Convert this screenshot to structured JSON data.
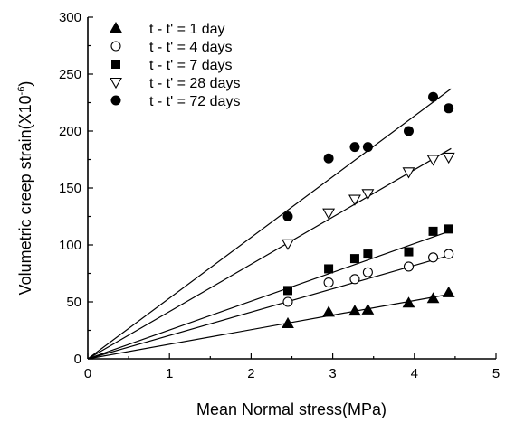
{
  "chart_data": {
    "type": "scatter",
    "title": "",
    "xlabel": "Mean Normal stress(MPa)",
    "ylabel": "Volumetric creep strain(X10",
    "ylabel_exponent": "-6",
    "ylabel_close": ")",
    "xlim": [
      0,
      5
    ],
    "ylim": [
      0,
      300
    ],
    "xticks": [
      0,
      1,
      2,
      3,
      4,
      5
    ],
    "yticks": [
      0,
      50,
      100,
      150,
      200,
      250,
      300
    ],
    "legend_position": "top-left",
    "grid": false,
    "series": [
      {
        "name": "t - t' = 1 day",
        "marker": "filled-triangle-up",
        "points": [
          [
            2.45,
            31
          ],
          [
            2.95,
            41
          ],
          [
            3.27,
            42
          ],
          [
            3.43,
            43
          ],
          [
            3.93,
            49
          ],
          [
            4.23,
            53
          ],
          [
            4.42,
            58
          ]
        ],
        "fit_slope": 12.8
      },
      {
        "name": "t - t' = 4 days",
        "marker": "open-circle",
        "points": [
          [
            2.45,
            50
          ],
          [
            2.95,
            67
          ],
          [
            3.27,
            70
          ],
          [
            3.43,
            76
          ],
          [
            3.93,
            81
          ],
          [
            4.23,
            89
          ],
          [
            4.42,
            92
          ]
        ],
        "fit_slope": 20.5
      },
      {
        "name": "t - t' = 7 days",
        "marker": "filled-square",
        "points": [
          [
            2.45,
            60
          ],
          [
            2.95,
            79
          ],
          [
            3.27,
            88
          ],
          [
            3.43,
            92
          ],
          [
            3.93,
            94
          ],
          [
            4.23,
            112
          ],
          [
            4.42,
            114
          ]
        ],
        "fit_slope": 25.3
      },
      {
        "name": "t - t' = 28 days",
        "marker": "open-triangle-down",
        "points": [
          [
            2.45,
            101
          ],
          [
            2.95,
            128
          ],
          [
            3.27,
            140
          ],
          [
            3.43,
            145
          ],
          [
            3.93,
            164
          ],
          [
            4.23,
            175
          ],
          [
            4.42,
            177
          ]
        ],
        "fit_slope": 41.5
      },
      {
        "name": "t - t' = 72 days",
        "marker": "filled-circle",
        "points": [
          [
            2.45,
            125
          ],
          [
            2.95,
            176
          ],
          [
            3.27,
            186
          ],
          [
            3.43,
            186
          ],
          [
            3.93,
            200
          ],
          [
            4.23,
            230
          ],
          [
            4.42,
            220
          ]
        ],
        "fit_slope": 53.3
      }
    ]
  }
}
